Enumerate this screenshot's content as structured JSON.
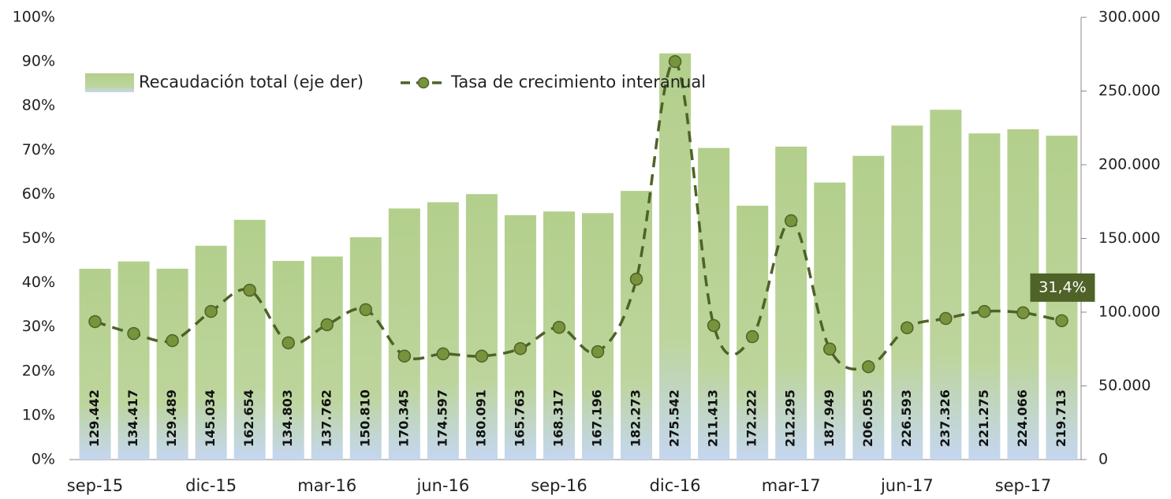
{
  "chart_data": {
    "type": "bar_line",
    "categories": [
      "sep-15",
      null,
      null,
      "dic-15",
      null,
      null,
      "mar-16",
      null,
      null,
      "jun-16",
      null,
      null,
      "sep-16",
      null,
      null,
      "dic-16",
      null,
      null,
      "mar-17",
      null,
      null,
      "jun-17",
      null,
      null,
      "sep-17",
      null
    ],
    "series": [
      {
        "name": "Recaudación total (eje der)",
        "type": "bar",
        "axis": "y2",
        "color": "#b3cf8c",
        "values": [
          129442,
          134417,
          129489,
          145034,
          162654,
          134803,
          137762,
          150810,
          170345,
          174597,
          180091,
          165763,
          168317,
          167196,
          182273,
          275542,
          211413,
          172222,
          212295,
          187949,
          206055,
          226593,
          237326,
          221275,
          224066,
          219713
        ],
        "value_labels": [
          "129.442",
          "134.417",
          "129.489",
          "145.034",
          "162.654",
          "134.803",
          "137.762",
          "150.810",
          "170.345",
          "174.597",
          "180.091",
          "165.763",
          "168.317",
          "167.196",
          "182.273",
          "275.542",
          "211.413",
          "172.222",
          "212.295",
          "187.949",
          "206.055",
          "226.593",
          "237.326",
          "221.275",
          "224.066",
          "219.713"
        ]
      },
      {
        "name": "Tasa de crecimiento interanual",
        "type": "line",
        "axis": "y",
        "color": "#4f6228",
        "marker_color": "#77933c",
        "values": [
          31.2,
          28.5,
          26.9,
          33.5,
          38.3,
          26.4,
          30.5,
          33.9,
          23.4,
          23.9,
          23.4,
          25.1,
          29.9,
          24.4,
          40.8,
          90.0,
          30.3,
          27.8,
          54.0,
          25.0,
          21.0,
          29.8,
          31.9,
          33.5,
          33.2,
          31.4
        ],
        "value_labels": [
          null,
          null,
          null,
          null,
          null,
          null,
          null,
          null,
          null,
          null,
          null,
          null,
          null,
          null,
          null,
          null,
          null,
          null,
          null,
          null,
          null,
          null,
          null,
          null,
          null,
          "31,4%"
        ]
      }
    ],
    "ylim": [
      0,
      100
    ],
    "yticks": [
      {
        "value": 0,
        "label": "0%"
      },
      {
        "value": 10,
        "label": "10%"
      },
      {
        "value": 20,
        "label": "20%"
      },
      {
        "value": 30,
        "label": "30%"
      },
      {
        "value": 40,
        "label": "40%"
      },
      {
        "value": 50,
        "label": "50%"
      },
      {
        "value": 60,
        "label": "60%"
      },
      {
        "value": 70,
        "label": "70%"
      },
      {
        "value": 80,
        "label": "80%"
      },
      {
        "value": 90,
        "label": "90%"
      },
      {
        "value": 100,
        "label": "100%"
      }
    ],
    "y2lim": [
      0,
      300000
    ],
    "y2ticks": [
      0,
      {
        "value": 50000,
        "label": "50.000"
      },
      {
        "value": 100000,
        "label": "100.000"
      },
      {
        "value": 150000,
        "label": "150.000"
      },
      {
        "value": 200000,
        "label": "200.000"
      },
      {
        "value": 250000,
        "label": "250.000"
      },
      {
        "value": 300000,
        "label": "300.000"
      }
    ],
    "legend": "top-left"
  }
}
